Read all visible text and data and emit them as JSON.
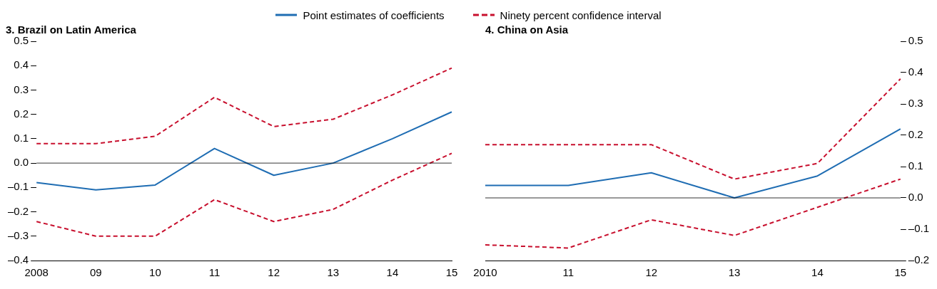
{
  "chart_data": [
    {
      "type": "line",
      "title": "3. Brazil on Latin America",
      "categories": [
        "2008",
        "09",
        "10",
        "11",
        "12",
        "13",
        "14",
        "15"
      ],
      "ylim": [
        -0.4,
        0.5
      ],
      "yticks": [
        {
          "value": -0.4,
          "label": "–0.4"
        },
        {
          "value": -0.3,
          "label": "–0.3"
        },
        {
          "value": -0.2,
          "label": "–0.2"
        },
        {
          "value": -0.1,
          "label": "–0.1"
        },
        {
          "value": 0,
          "label": "0.0"
        },
        {
          "value": 0.1,
          "label": "0.1"
        },
        {
          "value": 0.2,
          "label": "0.2"
        },
        {
          "value": 0.3,
          "label": "0.3"
        },
        {
          "value": 0.4,
          "label": "0.4"
        },
        {
          "value": 0.5,
          "label": "0.5"
        }
      ],
      "grid": false,
      "legend": "top",
      "marker": "none",
      "ref_lines": [
        {
          "axis": "y",
          "value": 0,
          "color": "#000000"
        }
      ],
      "series": [
        {
          "name": "Point estimates of coefficients",
          "color": "#1f6db3",
          "line_style": "solid",
          "values": [
            -0.08,
            -0.11,
            -0.09,
            0.06,
            -0.05,
            0.0,
            0.1,
            0.21
          ]
        },
        {
          "name": "Ninety percent confidence interval",
          "color": "#c8102e",
          "line_style": "dashed",
          "values": [
            0.08,
            0.08,
            0.11,
            0.27,
            0.15,
            0.18,
            0.28,
            0.39
          ]
        },
        {
          "color": "#c8102e",
          "line_style": "dashed",
          "values": [
            -0.24,
            -0.3,
            -0.3,
            -0.15,
            -0.24,
            -0.19,
            -0.07,
            0.04
          ]
        }
      ]
    },
    {
      "type": "line",
      "title": "4. China on Asia",
      "categories": [
        "2010",
        "11",
        "12",
        "13",
        "14",
        "15"
      ],
      "ylim": [
        -0.2,
        0.5
      ],
      "yticks": [
        {
          "value": -0.2,
          "label": "–0.2"
        },
        {
          "value": -0.1,
          "label": "–0.1"
        },
        {
          "value": 0,
          "label": "0.0"
        },
        {
          "value": 0.1,
          "label": "0.1"
        },
        {
          "value": 0.2,
          "label": "0.2"
        },
        {
          "value": 0.3,
          "label": "0.3"
        },
        {
          "value": 0.4,
          "label": "0.4"
        },
        {
          "value": 0.5,
          "label": "0.5"
        }
      ],
      "grid": false,
      "marker": "none",
      "ref_lines": [
        {
          "axis": "y",
          "value": 0,
          "color": "#000000"
        }
      ],
      "series": [
        {
          "color": "#1f6db3",
          "line_style": "solid",
          "values": [
            0.04,
            0.04,
            0.08,
            0.0,
            0.07,
            0.22
          ]
        },
        {
          "color": "#c8102e",
          "line_style": "dashed",
          "values": [
            0.17,
            0.17,
            0.17,
            0.06,
            0.11,
            0.38
          ]
        },
        {
          "color": "#c8102e",
          "line_style": "dashed",
          "values": [
            -0.15,
            -0.16,
            -0.07,
            -0.12,
            -0.03,
            0.06
          ]
        }
      ]
    }
  ]
}
